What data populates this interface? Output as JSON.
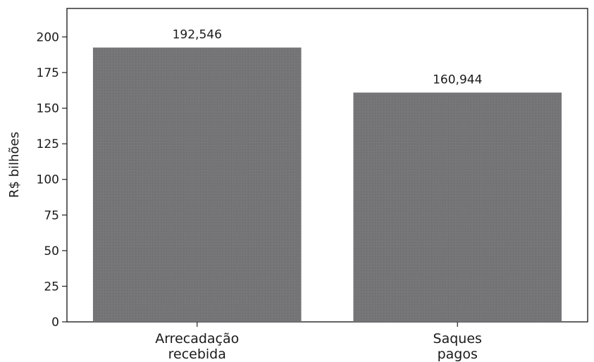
{
  "chart_data": {
    "type": "bar",
    "categories": [
      [
        "Arrecadação",
        "recebida"
      ],
      [
        "Saques",
        "pagos"
      ]
    ],
    "values": [
      192.546,
      160.944
    ],
    "value_labels": [
      "192,546",
      "160,944"
    ],
    "title": "",
    "xlabel": "",
    "ylabel": "R$ bilhões",
    "ylim": [
      0,
      220
    ],
    "yticks": [
      0,
      25,
      50,
      75,
      100,
      125,
      150,
      175,
      200
    ],
    "bar_color": "#757578",
    "grid": false,
    "legend": "none"
  }
}
